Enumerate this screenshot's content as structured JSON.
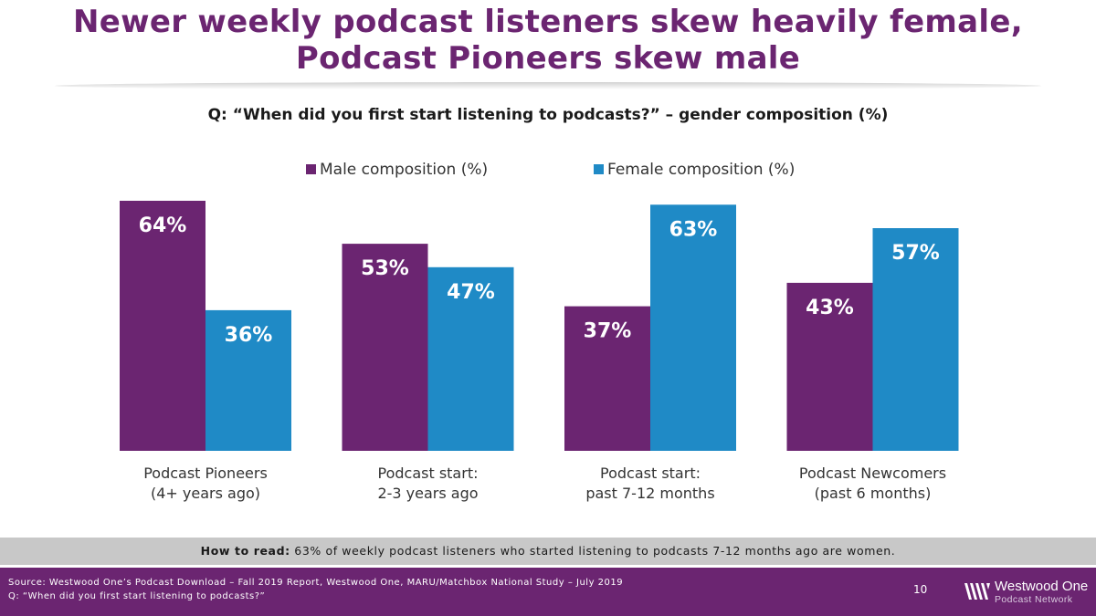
{
  "slide": {
    "title_line1": "Newer weekly podcast listeners skew heavily female,",
    "title_line2": "Podcast Pioneers skew male"
  },
  "chart_data": {
    "type": "bar",
    "title": "Q: “When did you first start listening to podcasts?” – gender composition (%)",
    "categories": [
      [
        "Podcast Pioneers",
        "(4+ years ago)"
      ],
      [
        "Podcast start:",
        "2-3 years ago"
      ],
      [
        "Podcast start:",
        "past 7-12 months"
      ],
      [
        "Podcast Newcomers",
        "(past 6 months)"
      ]
    ],
    "series": [
      {
        "name": "Male composition (%)",
        "values": [
          64,
          53,
          37,
          43
        ],
        "color": "#6b2571"
      },
      {
        "name": "Female composition (%)",
        "values": [
          36,
          47,
          63,
          57
        ],
        "color": "#1f8ac6"
      }
    ],
    "ylim": [
      0,
      70
    ],
    "value_suffix": "%",
    "legend_position": "top",
    "grid": false
  },
  "how_to_read": {
    "label": "How to read:",
    "text": " 63% of weekly podcast listeners who started listening to podcasts 7-12 months ago are women."
  },
  "footer": {
    "source_line1": "Source: Westwood One’s Podcast Download – Fall 2019 Report, Westwood One, MARU/Matchbox National Study – July 2019",
    "source_line2": "Q: “When did you first start listening to podcasts?”",
    "page_number": "10",
    "logo_name": "Westwood One",
    "logo_sub": "Podcast Network"
  }
}
